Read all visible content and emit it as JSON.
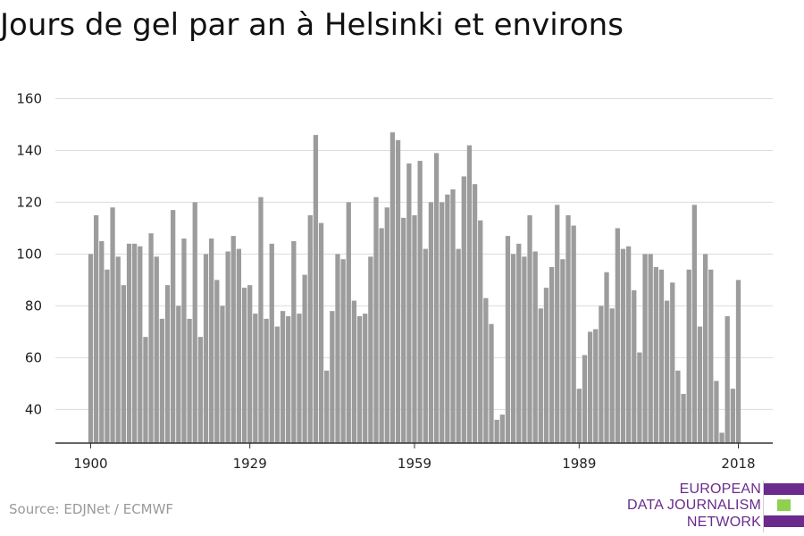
{
  "chart_data": {
    "type": "bar",
    "title": "Jours de gel par an à Helsinki et environs",
    "xlabel": "",
    "ylabel": "",
    "x": [
      1900,
      1901,
      1902,
      1903,
      1904,
      1905,
      1906,
      1907,
      1908,
      1909,
      1910,
      1911,
      1912,
      1913,
      1914,
      1915,
      1916,
      1917,
      1918,
      1919,
      1920,
      1921,
      1922,
      1923,
      1924,
      1925,
      1926,
      1927,
      1928,
      1929,
      1930,
      1931,
      1932,
      1933,
      1934,
      1935,
      1936,
      1937,
      1938,
      1939,
      1940,
      1941,
      1942,
      1943,
      1944,
      1945,
      1946,
      1947,
      1948,
      1949,
      1950,
      1951,
      1952,
      1953,
      1954,
      1955,
      1956,
      1957,
      1958,
      1959,
      1960,
      1961,
      1962,
      1963,
      1964,
      1965,
      1966,
      1967,
      1968,
      1969,
      1970,
      1971,
      1972,
      1973,
      1974,
      1975,
      1976,
      1977,
      1978,
      1979,
      1980,
      1981,
      1982,
      1983,
      1984,
      1985,
      1986,
      1987,
      1988,
      1989,
      1990,
      1991,
      1992,
      1993,
      1994,
      1995,
      1996,
      1997,
      1998,
      1999,
      2000,
      2001,
      2002,
      2003,
      2004,
      2005,
      2006,
      2007,
      2008,
      2009,
      2010,
      2011,
      2012,
      2013,
      2014,
      2015,
      2016,
      2017,
      2018
    ],
    "values": [
      100,
      115,
      105,
      94,
      118,
      99,
      88,
      104,
      104,
      103,
      68,
      108,
      99,
      75,
      88,
      117,
      80,
      106,
      75,
      120,
      68,
      100,
      106,
      90,
      80,
      101,
      107,
      102,
      87,
      88,
      77,
      122,
      75,
      104,
      72,
      78,
      76,
      105,
      77,
      92,
      115,
      146,
      112,
      55,
      78,
      100,
      98,
      120,
      82,
      76,
      77,
      99,
      122,
      110,
      118,
      147,
      144,
      114,
      135,
      115,
      136,
      102,
      120,
      139,
      120,
      123,
      125,
      102,
      130,
      142,
      127,
      113,
      83,
      73,
      36,
      38,
      107,
      100,
      104,
      99,
      115,
      101,
      79,
      87,
      95,
      119,
      98,
      115,
      111,
      48,
      61,
      70,
      71,
      80,
      93,
      79,
      110,
      102,
      103,
      86,
      62,
      100,
      100,
      95,
      94,
      82,
      89,
      55,
      46,
      94,
      119,
      72,
      100,
      94,
      51,
      31,
      76,
      48,
      90
    ],
    "x_ticks": [
      "1900",
      "1929",
      "1959",
      "1989",
      "2018"
    ],
    "y_ticks": [
      "40",
      "60",
      "80",
      "100",
      "120",
      "140",
      "160"
    ],
    "ylim": [
      27,
      165
    ],
    "grid": true,
    "bar_color": "#9c9c9c"
  },
  "source": "Source: EDJNet / ECMWF",
  "logo": {
    "lines": [
      "EUROPEAN",
      "DATA JOURNALISM",
      "NETWORK"
    ],
    "text_color": "#6a2b8c",
    "bar_colors": [
      "#6a2b8c",
      "#8fd14f",
      "#6a2b8c"
    ]
  }
}
